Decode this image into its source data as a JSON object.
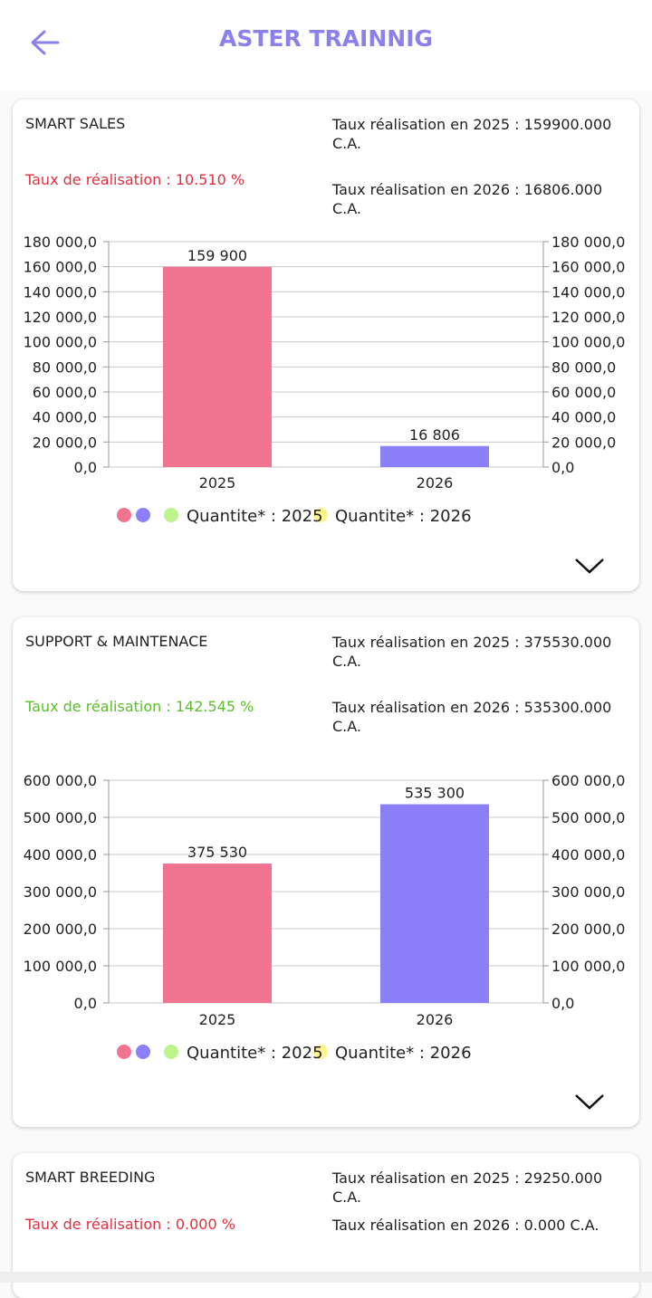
{
  "header": {
    "title": "ASTER TRAINNIG"
  },
  "colors": {
    "accent": "#8C80EE",
    "series_2025": "#F07490",
    "series_2026": "#8B80F9",
    "legend_green": "#BDF58C",
    "legend_yellow": "#FFF78C",
    "taux_low": "#E0303F",
    "taux_high": "#5CBE2C"
  },
  "legend": {
    "label_2025": "Quantite* : 2025",
    "label_2026": "Quantite* : 2026"
  },
  "cards": [
    {
      "name": "SMART SALES",
      "taux": "Taux de réalisation : 10.510 %",
      "taux_status": "low",
      "taux_2025": "Taux réalisation en 2025 : 159900.000 C.A.",
      "taux_2026": "Taux réalisation en 2026 : 16806.000 C.A."
    },
    {
      "name": "SUPPORT & MAINTENACE",
      "taux": "Taux de réalisation : 142.545 %",
      "taux_status": "high",
      "taux_2025": "Taux réalisation en 2025 : 375530.000 C.A.",
      "taux_2026": "Taux réalisation en 2026 : 535300.000 C.A."
    },
    {
      "name": "SMART BREEDING",
      "taux": "Taux de réalisation : 0.000 %",
      "taux_status": "low",
      "taux_2025": "Taux réalisation en 2025 : 29250.000 C.A.",
      "taux_2026": "Taux réalisation en 2026 : 0.000 C.A."
    }
  ],
  "chart_data": [
    {
      "type": "bar",
      "categories": [
        "2025",
        "2026"
      ],
      "values": [
        159900,
        16806
      ],
      "value_labels": [
        "159 900",
        "16 806"
      ],
      "ylim": [
        0,
        180000
      ],
      "yticks": [
        "0,0",
        "20 000,0",
        "40 000,0",
        "60 000,0",
        "80 000,0",
        "100 000,0",
        "120 000,0",
        "140 000,0",
        "160 000,0",
        "180 000,0"
      ],
      "grid": true
    },
    {
      "type": "bar",
      "categories": [
        "2025",
        "2026"
      ],
      "values": [
        375530,
        535300
      ],
      "value_labels": [
        "375 530",
        "535 300"
      ],
      "ylim": [
        0,
        600000
      ],
      "yticks": [
        "0,0",
        "100 000,0",
        "200 000,0",
        "300 000,0",
        "400 000,0",
        "500 000,0",
        "600 000,0"
      ],
      "grid": true
    }
  ]
}
